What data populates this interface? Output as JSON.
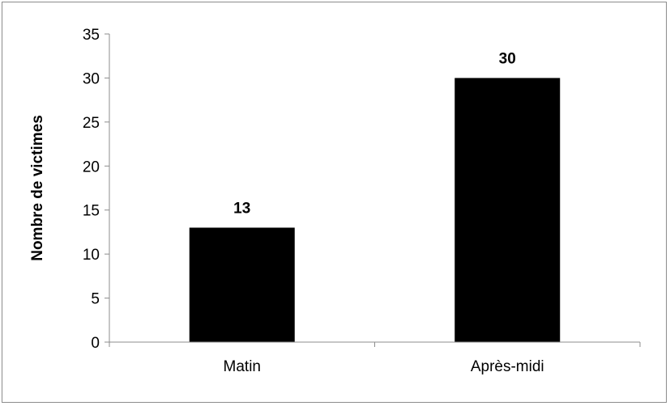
{
  "chart_data": {
    "type": "bar",
    "categories": [
      "Matin",
      "Après-midi"
    ],
    "values": [
      13,
      30
    ],
    "data_labels": [
      "13",
      "30"
    ],
    "title": "",
    "xlabel": "",
    "ylabel": "Nombre de victimes",
    "ylim": [
      0,
      35
    ],
    "yticks": [
      "0",
      "5",
      "10",
      "15",
      "20",
      "25",
      "30",
      "35"
    ],
    "grid": false,
    "legend": "none",
    "bar_color": "#000000"
  }
}
